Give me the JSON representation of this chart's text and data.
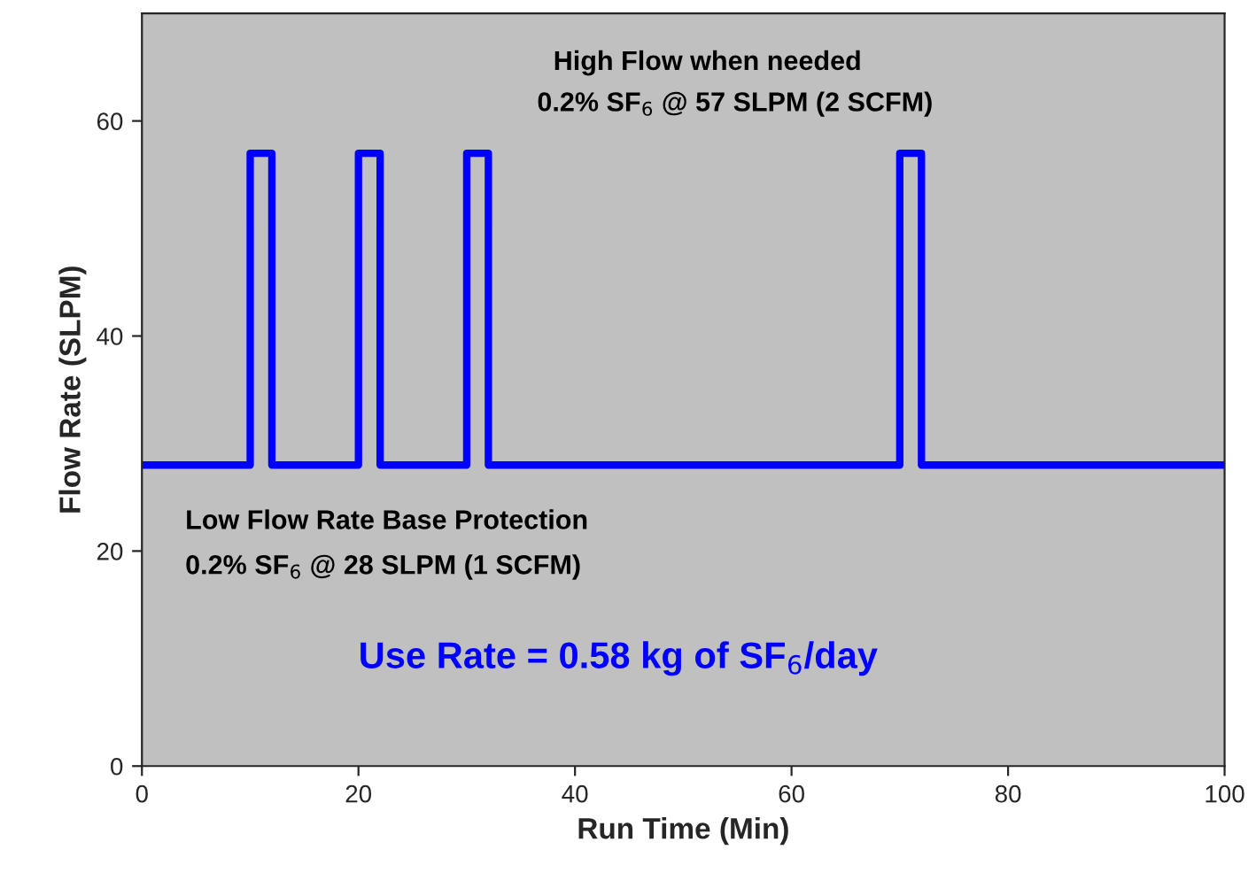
{
  "chart_data": {
    "type": "step",
    "xlabel": "Run Time (Min)",
    "ylabel": "Flow Rate (SLPM)",
    "x": [
      0,
      10,
      12,
      20,
      22,
      30,
      32,
      70,
      72,
      100
    ],
    "series": [
      {
        "color": "#0000ff",
        "values": [
          28,
          57,
          28,
          57,
          28,
          57,
          28,
          57,
          28,
          28
        ]
      }
    ],
    "xlim": [
      0,
      100
    ],
    "xticks": [
      0,
      20,
      40,
      60,
      80,
      100
    ],
    "ylim": [
      0,
      70
    ],
    "yticks": [
      0,
      20,
      40,
      60
    ],
    "grid": false,
    "legend": false,
    "annotations": [
      "High Flow when needed",
      "0.2% SF$_{6}$ @ 57 SLPM (2 SCFM)",
      "Low Flow Rate Base Protection",
      "0.2% SF$_{6}$ @ 28 SLPM (1 SCFM)",
      "Use Rate = 0.58 kg of SF$_{6}$/day"
    ]
  }
}
